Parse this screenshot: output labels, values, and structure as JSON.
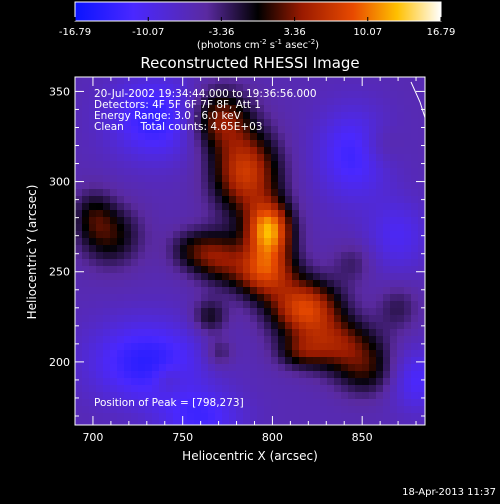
{
  "colorbar": {
    "ticks": [
      "-16.79",
      "-10.07",
      "-3.36",
      "3.36",
      "10.07",
      "16.79"
    ],
    "units_html": "(photons cm<tspan dy=\"-4\" font-size=\"7\">-2</tspan><tspan dy=\"4\"> s</tspan><tspan dy=\"-4\" font-size=\"7\">-1</tspan><tspan dy=\"4\"> asec</tspan><tspan dy=\"-4\" font-size=\"7\">-2</tspan><tspan dy=\"4\">)</tspan>",
    "units_text": "(photons cm-2 s-1 asec-2)",
    "range": [
      -16.79,
      16.79
    ]
  },
  "title": "Reconstructed RHESSI Image",
  "annotations": {
    "time": "20-Jul-2002 19:34:44.000 to 19:36:56.000",
    "detectors": "Detectors: 4F 5F 6F 7F 8F, Att 1",
    "energy": "Energy Range: 3.0 - 6.0 keV",
    "clean": "Clean     Total counts: 4.65E+03",
    "peak": "Position of Peak = [798,273]"
  },
  "footer_date": "18-Apr-2013 11:37",
  "chart_data": {
    "type": "heatmap",
    "title": "Reconstructed RHESSI Image",
    "xlabel": "Heliocentric X (arcsec)",
    "ylabel": "Heliocentric Y (arcsec)",
    "xlim": [
      690,
      885
    ],
    "ylim": [
      165,
      358
    ],
    "xticks": [
      700,
      750,
      800,
      850
    ],
    "yticks": [
      200,
      250,
      300,
      350
    ],
    "zlim": [
      -16.79,
      16.79
    ],
    "peak": [
      798,
      273
    ],
    "colormap": "blue-purple-black-red-orange-yellow-white",
    "sources": [
      {
        "x": 798,
        "y": 273,
        "value": 16.8,
        "sx": 9,
        "sy": 11
      },
      {
        "x": 785,
        "y": 305,
        "value": 13.0,
        "sx": 13,
        "sy": 16
      },
      {
        "x": 770,
        "y": 335,
        "value": 9.5,
        "sx": 12,
        "sy": 12
      },
      {
        "x": 795,
        "y": 250,
        "value": 12.5,
        "sx": 12,
        "sy": 10
      },
      {
        "x": 818,
        "y": 230,
        "value": 13.5,
        "sx": 14,
        "sy": 11
      },
      {
        "x": 835,
        "y": 210,
        "value": 9.0,
        "sx": 16,
        "sy": 10
      },
      {
        "x": 852,
        "y": 195,
        "value": 6.0,
        "sx": 12,
        "sy": 10
      },
      {
        "x": 770,
        "y": 258,
        "value": 8.0,
        "sx": 10,
        "sy": 10
      },
      {
        "x": 755,
        "y": 262,
        "value": 5.0,
        "sx": 9,
        "sy": 8
      },
      {
        "x": 710,
        "y": 270,
        "value": 6.5,
        "sx": 12,
        "sy": 12
      },
      {
        "x": 700,
        "y": 282,
        "value": 4.5,
        "sx": 8,
        "sy": 10
      },
      {
        "x": 765,
        "y": 225,
        "value": 5.5,
        "sx": 7,
        "sy": 7
      },
      {
        "x": 770,
        "y": 205,
        "value": 4.0,
        "sx": 6,
        "sy": 6
      },
      {
        "x": 742,
        "y": 190,
        "value": 3.0,
        "sx": 6,
        "sy": 6
      },
      {
        "x": 815,
        "y": 205,
        "value": 4.5,
        "sx": 9,
        "sy": 6
      },
      {
        "x": 870,
        "y": 230,
        "value": 3.5,
        "sx": 8,
        "sy": 9
      },
      {
        "x": 860,
        "y": 320,
        "value": 2.5,
        "sx": 8,
        "sy": 8
      },
      {
        "x": 845,
        "y": 255,
        "value": 3.0,
        "sx": 8,
        "sy": 8
      },
      {
        "x": 735,
        "y": 335,
        "value": -7.5,
        "sx": 18,
        "sy": 16
      },
      {
        "x": 730,
        "y": 200,
        "value": -8.0,
        "sx": 22,
        "sy": 16
      },
      {
        "x": 845,
        "y": 315,
        "value": -6.5,
        "sx": 14,
        "sy": 18
      },
      {
        "x": 870,
        "y": 270,
        "value": -4.5,
        "sx": 12,
        "sy": 14
      },
      {
        "x": 880,
        "y": 190,
        "value": -5.5,
        "sx": 10,
        "sy": 12
      },
      {
        "x": 760,
        "y": 170,
        "value": -6.0,
        "sx": 16,
        "sy": 10
      }
    ]
  }
}
